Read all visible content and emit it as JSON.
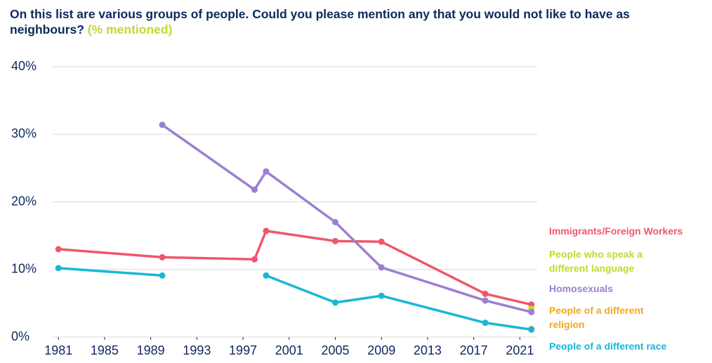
{
  "chart_data": {
    "type": "line",
    "title": "On this list are various groups of people. Could you please mention any that you would not like to have as neighbours?",
    "subtitle": "(% mentioned)",
    "x": [
      1981,
      1990,
      1998,
      1999,
      2005,
      2009,
      2018,
      2022
    ],
    "series": [
      {
        "name": "Immigrants/Foreign Workers",
        "color": "#f0566a",
        "values": [
          13.0,
          11.8,
          11.5,
          15.7,
          14.2,
          14.1,
          6.4,
          4.8
        ]
      },
      {
        "name": "People who speak a different language",
        "color": "#c3d82e",
        "values": [
          null,
          null,
          null,
          null,
          null,
          null,
          null,
          4.2
        ]
      },
      {
        "name": "Homosexuals",
        "color": "#9b7fd0",
        "values": [
          null,
          31.4,
          21.8,
          24.5,
          17.0,
          10.3,
          5.4,
          3.7
        ]
      },
      {
        "name": "People of a different religion",
        "color": "#f5a81c",
        "values": [
          null,
          null,
          null,
          null,
          null,
          null,
          null,
          1.2
        ]
      },
      {
        "name": "People of a different race",
        "color": "#17b8d6",
        "values": [
          10.2,
          9.1,
          null,
          9.1,
          5.1,
          6.1,
          2.1,
          1.1
        ]
      }
    ],
    "xlim": [
      1980.5,
      2022.5
    ],
    "xticks": [
      1981,
      1985,
      1989,
      1993,
      1997,
      2001,
      2005,
      2009,
      2013,
      2017,
      2021
    ],
    "ylim": [
      0,
      40
    ],
    "yticks": [
      {
        "value": 0,
        "label": "0%"
      },
      {
        "value": 10,
        "label": "10%"
      },
      {
        "value": 20,
        "label": "20%"
      },
      {
        "value": 30,
        "label": "30%"
      },
      {
        "value": 40,
        "label": "40%"
      }
    ],
    "grid": true
  }
}
